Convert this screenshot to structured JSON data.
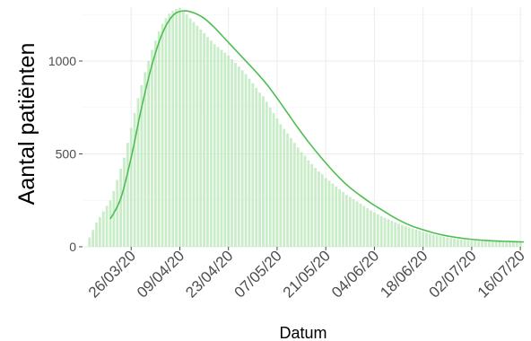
{
  "chart_data": {
    "type": "bar",
    "xlabel": "Datum",
    "ylabel": "Aantal patiënten",
    "ylim": [
      0,
      1290
    ],
    "yticks": [
      0,
      500,
      1000
    ],
    "grid": true,
    "x_range": [
      "2020-03-12",
      "2020-07-17"
    ],
    "xticks": [
      "2020-03-26",
      "2020-04-09",
      "2020-04-23",
      "2020-05-07",
      "2020-05-21",
      "2020-06-04",
      "2020-06-18",
      "2020-07-02",
      "2020-07-16"
    ],
    "xtick_labels": [
      "26/03/20",
      "09/04/20",
      "23/04/20",
      "07/05/20",
      "21/05/20",
      "04/06/20",
      "18/06/20",
      "02/07/20",
      "16/07/20"
    ],
    "colors": {
      "bars": "#bfe9bf",
      "trend": "#4cbf50"
    },
    "series": [
      {
        "type": "bar",
        "points": [
          [
            "2020-03-14",
            50
          ],
          [
            "2020-03-15",
            90
          ],
          [
            "2020-03-16",
            130
          ],
          [
            "2020-03-17",
            160
          ],
          [
            "2020-03-18",
            190
          ],
          [
            "2020-03-19",
            220
          ],
          [
            "2020-03-20",
            250
          ],
          [
            "2020-03-21",
            300
          ],
          [
            "2020-03-22",
            360
          ],
          [
            "2020-03-23",
            420
          ],
          [
            "2020-03-24",
            480
          ],
          [
            "2020-03-25",
            560
          ],
          [
            "2020-03-26",
            640
          ],
          [
            "2020-03-27",
            720
          ],
          [
            "2020-03-28",
            800
          ],
          [
            "2020-03-29",
            870
          ],
          [
            "2020-03-30",
            940
          ],
          [
            "2020-03-31",
            1000
          ],
          [
            "2020-04-01",
            1060
          ],
          [
            "2020-04-02",
            1110
          ],
          [
            "2020-04-03",
            1160
          ],
          [
            "2020-04-04",
            1200
          ],
          [
            "2020-04-05",
            1230
          ],
          [
            "2020-04-06",
            1255
          ],
          [
            "2020-04-07",
            1270
          ],
          [
            "2020-04-08",
            1280
          ],
          [
            "2020-04-09",
            1285
          ],
          [
            "2020-04-10",
            1270
          ],
          [
            "2020-04-11",
            1250
          ],
          [
            "2020-04-12",
            1230
          ],
          [
            "2020-04-13",
            1210
          ],
          [
            "2020-04-14",
            1190
          ],
          [
            "2020-04-15",
            1170
          ],
          [
            "2020-04-16",
            1150
          ],
          [
            "2020-04-17",
            1130
          ],
          [
            "2020-04-18",
            1110
          ],
          [
            "2020-04-19",
            1090
          ],
          [
            "2020-04-20",
            1075
          ],
          [
            "2020-04-21",
            1060
          ],
          [
            "2020-04-22",
            1045
          ],
          [
            "2020-04-23",
            1030
          ],
          [
            "2020-04-24",
            1010
          ],
          [
            "2020-04-25",
            990
          ],
          [
            "2020-04-26",
            970
          ],
          [
            "2020-04-27",
            950
          ],
          [
            "2020-04-28",
            930
          ],
          [
            "2020-04-29",
            905
          ],
          [
            "2020-04-30",
            880
          ],
          [
            "2020-05-01",
            855
          ],
          [
            "2020-05-02",
            830
          ],
          [
            "2020-05-03",
            810
          ],
          [
            "2020-05-04",
            780
          ],
          [
            "2020-05-05",
            750
          ],
          [
            "2020-05-06",
            720
          ],
          [
            "2020-05-07",
            690
          ],
          [
            "2020-05-08",
            660
          ],
          [
            "2020-05-09",
            635
          ],
          [
            "2020-05-10",
            610
          ],
          [
            "2020-05-11",
            585
          ],
          [
            "2020-05-12",
            560
          ],
          [
            "2020-05-13",
            535
          ],
          [
            "2020-05-14",
            510
          ],
          [
            "2020-05-15",
            490
          ],
          [
            "2020-05-16",
            465
          ],
          [
            "2020-05-17",
            445
          ],
          [
            "2020-05-18",
            425
          ],
          [
            "2020-05-19",
            405
          ],
          [
            "2020-05-20",
            390
          ],
          [
            "2020-05-21",
            370
          ],
          [
            "2020-05-22",
            355
          ],
          [
            "2020-05-23",
            340
          ],
          [
            "2020-05-24",
            325
          ],
          [
            "2020-05-25",
            310
          ],
          [
            "2020-05-26",
            295
          ],
          [
            "2020-05-27",
            280
          ],
          [
            "2020-05-28",
            268
          ],
          [
            "2020-05-29",
            256
          ],
          [
            "2020-05-30",
            244
          ],
          [
            "2020-05-31",
            232
          ],
          [
            "2020-06-01",
            220
          ],
          [
            "2020-06-02",
            208
          ],
          [
            "2020-06-03",
            196
          ],
          [
            "2020-06-04",
            185
          ],
          [
            "2020-06-05",
            175
          ],
          [
            "2020-06-06",
            165
          ],
          [
            "2020-06-07",
            156
          ],
          [
            "2020-06-08",
            148
          ],
          [
            "2020-06-09",
            140
          ],
          [
            "2020-06-10",
            132
          ],
          [
            "2020-06-11",
            124
          ],
          [
            "2020-06-12",
            117
          ],
          [
            "2020-06-13",
            110
          ],
          [
            "2020-06-14",
            104
          ],
          [
            "2020-06-15",
            98
          ],
          [
            "2020-06-16",
            92
          ],
          [
            "2020-06-17",
            86
          ],
          [
            "2020-06-18",
            80
          ],
          [
            "2020-06-19",
            75
          ],
          [
            "2020-06-20",
            70
          ],
          [
            "2020-06-21",
            65
          ],
          [
            "2020-06-22",
            61
          ],
          [
            "2020-06-23",
            57
          ],
          [
            "2020-06-24",
            53
          ],
          [
            "2020-06-25",
            50
          ],
          [
            "2020-06-26",
            47
          ],
          [
            "2020-06-27",
            44
          ],
          [
            "2020-06-28",
            41
          ],
          [
            "2020-06-29",
            39
          ],
          [
            "2020-06-30",
            37
          ],
          [
            "2020-07-01",
            35
          ],
          [
            "2020-07-02",
            33
          ],
          [
            "2020-07-03",
            32
          ],
          [
            "2020-07-04",
            31
          ],
          [
            "2020-07-05",
            30
          ],
          [
            "2020-07-06",
            29
          ],
          [
            "2020-07-07",
            28
          ],
          [
            "2020-07-08",
            28
          ],
          [
            "2020-07-09",
            27
          ],
          [
            "2020-07-10",
            27
          ],
          [
            "2020-07-11",
            27
          ],
          [
            "2020-07-12",
            26
          ],
          [
            "2020-07-13",
            26
          ],
          [
            "2020-07-14",
            26
          ],
          [
            "2020-07-15",
            26
          ],
          [
            "2020-07-16",
            26
          ]
        ]
      },
      {
        "type": "line",
        "points": [
          [
            "2020-03-20",
            150
          ],
          [
            "2020-03-23",
            260
          ],
          [
            "2020-03-26",
            480
          ],
          [
            "2020-03-29",
            750
          ],
          [
            "2020-04-01",
            980
          ],
          [
            "2020-04-04",
            1150
          ],
          [
            "2020-04-07",
            1245
          ],
          [
            "2020-04-10",
            1270
          ],
          [
            "2020-04-13",
            1260
          ],
          [
            "2020-04-16",
            1230
          ],
          [
            "2020-04-19",
            1180
          ],
          [
            "2020-04-22",
            1120
          ],
          [
            "2020-04-25",
            1060
          ],
          [
            "2020-04-28",
            1000
          ],
          [
            "2020-05-01",
            940
          ],
          [
            "2020-05-04",
            875
          ],
          [
            "2020-05-07",
            800
          ],
          [
            "2020-05-10",
            720
          ],
          [
            "2020-05-13",
            640
          ],
          [
            "2020-05-16",
            565
          ],
          [
            "2020-05-19",
            495
          ],
          [
            "2020-05-22",
            430
          ],
          [
            "2020-05-25",
            370
          ],
          [
            "2020-05-28",
            318
          ],
          [
            "2020-05-31",
            275
          ],
          [
            "2020-06-03",
            235
          ],
          [
            "2020-06-06",
            200
          ],
          [
            "2020-06-09",
            165
          ],
          [
            "2020-06-12",
            135
          ],
          [
            "2020-06-15",
            110
          ],
          [
            "2020-06-18",
            92
          ],
          [
            "2020-06-21",
            75
          ],
          [
            "2020-06-24",
            62
          ],
          [
            "2020-06-27",
            52
          ],
          [
            "2020-06-30",
            44
          ],
          [
            "2020-07-03",
            38
          ],
          [
            "2020-07-06",
            34
          ],
          [
            "2020-07-09",
            31
          ],
          [
            "2020-07-12",
            29
          ],
          [
            "2020-07-15",
            27
          ],
          [
            "2020-07-17",
            26
          ]
        ]
      }
    ]
  }
}
